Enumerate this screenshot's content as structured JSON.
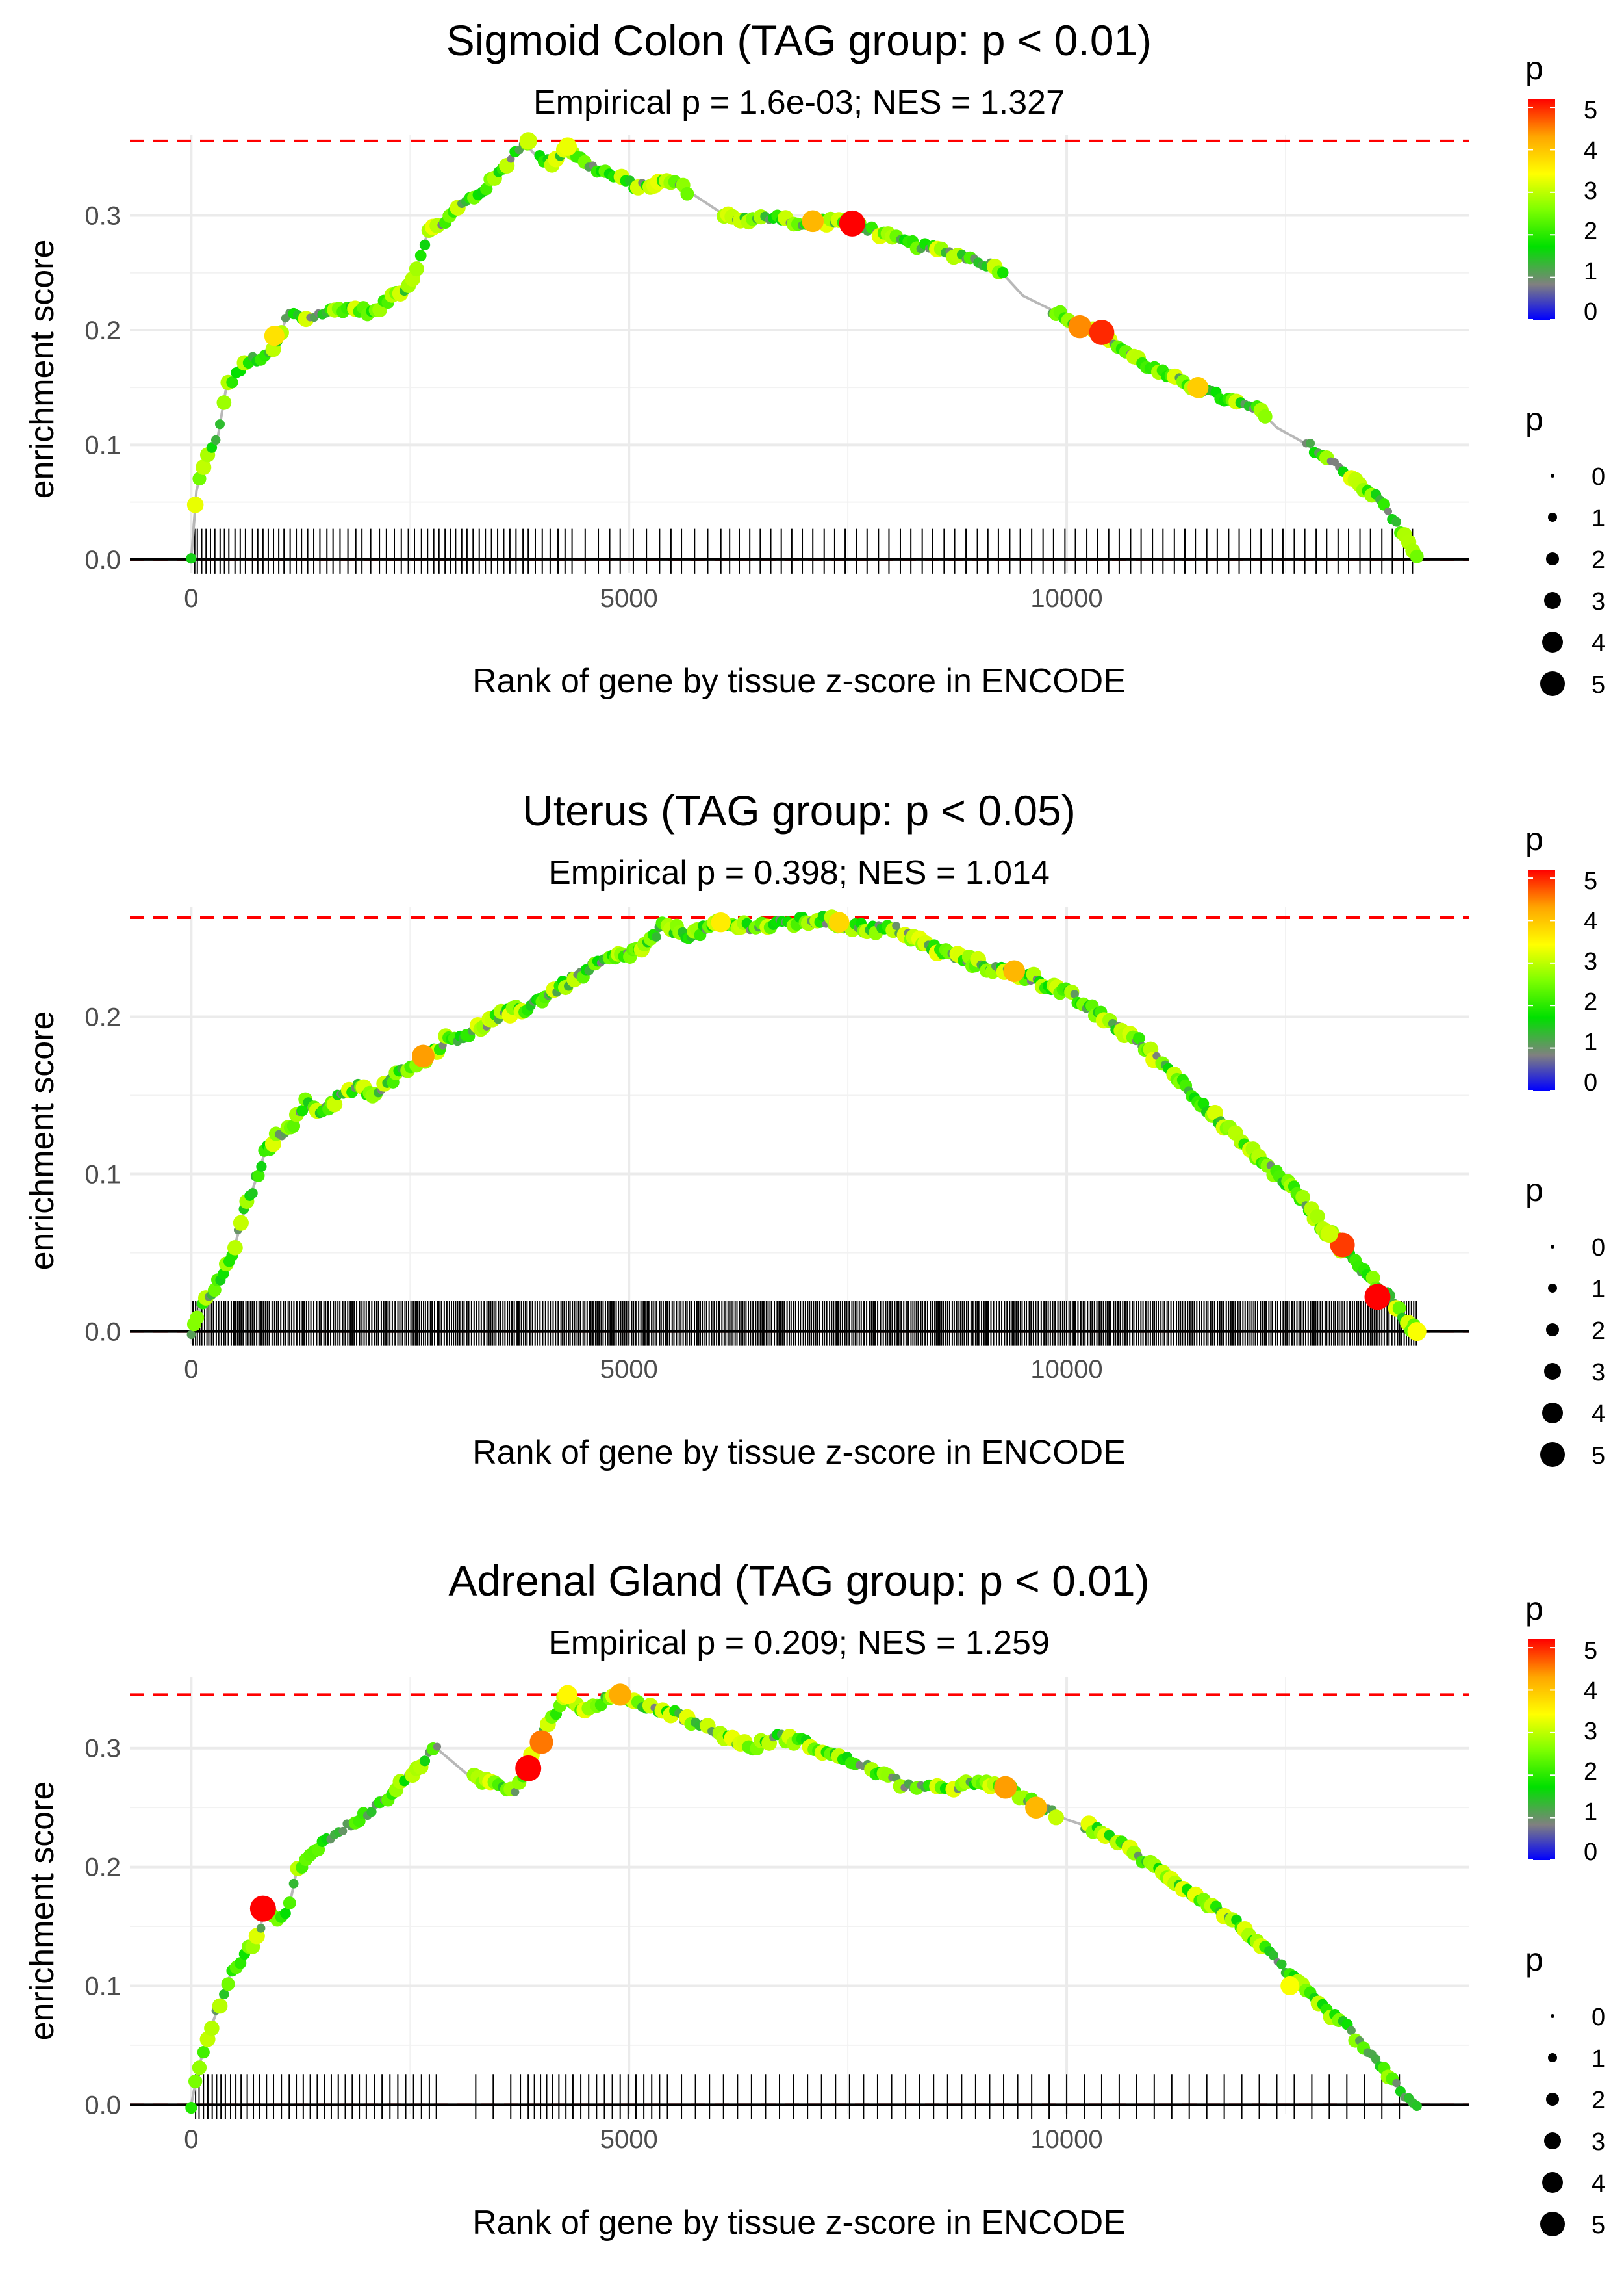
{
  "legend_colors": [
    "#0000ff",
    "#808080",
    "#00e000",
    "#7fff00",
    "#ffff00",
    "#ffa500",
    "#ff0000"
  ],
  "chart_data": [
    {
      "type": "scatter",
      "title": "Sigmoid Colon (TAG group: p < 0.01)",
      "subtitle": "Empirical p = 1.6e-03; NES = 1.327",
      "xlabel": "Rank of gene by tissue z-score in ENCODE",
      "ylabel": "enrichment score",
      "xlim": [
        -700,
        14600
      ],
      "ylim": [
        -0.012,
        0.37
      ],
      "xticks": [
        0,
        5000,
        10000
      ],
      "xtick_labels": [
        "0",
        "5000",
        "10000"
      ],
      "yticks": [
        0.0,
        0.1,
        0.2,
        0.3
      ],
      "ytick_labels": [
        "0.0",
        "0.1",
        "0.2",
        "0.3"
      ],
      "max_es": 0.365,
      "curve": [
        [
          0,
          0
        ],
        [
          60,
          0.06
        ],
        [
          150,
          0.085
        ],
        [
          300,
          0.105
        ],
        [
          400,
          0.15
        ],
        [
          550,
          0.165
        ],
        [
          700,
          0.175
        ],
        [
          850,
          0.175
        ],
        [
          1000,
          0.19
        ],
        [
          1100,
          0.215
        ],
        [
          1300,
          0.21
        ],
        [
          1500,
          0.215
        ],
        [
          1800,
          0.22
        ],
        [
          2100,
          0.215
        ],
        [
          2300,
          0.23
        ],
        [
          2500,
          0.24
        ],
        [
          2600,
          0.26
        ],
        [
          2700,
          0.285
        ],
        [
          2900,
          0.295
        ],
        [
          3100,
          0.31
        ],
        [
          3300,
          0.32
        ],
        [
          3500,
          0.335
        ],
        [
          3700,
          0.355
        ],
        [
          3800,
          0.365
        ],
        [
          3900,
          0.355
        ],
        [
          4100,
          0.345
        ],
        [
          4300,
          0.36
        ],
        [
          4500,
          0.345
        ],
        [
          4800,
          0.335
        ],
        [
          5100,
          0.325
        ],
        [
          5500,
          0.33
        ],
        [
          5700,
          0.32
        ],
        [
          6100,
          0.3
        ],
        [
          6400,
          0.295
        ],
        [
          6700,
          0.3
        ],
        [
          7000,
          0.29
        ],
        [
          7200,
          0.295
        ],
        [
          7400,
          0.295
        ],
        [
          7600,
          0.293
        ],
        [
          8000,
          0.28
        ],
        [
          8400,
          0.272
        ],
        [
          8800,
          0.265
        ],
        [
          9200,
          0.255
        ],
        [
          9500,
          0.23
        ],
        [
          9900,
          0.215
        ],
        [
          10200,
          0.203
        ],
        [
          10400,
          0.198
        ],
        [
          10600,
          0.185
        ],
        [
          10900,
          0.17
        ],
        [
          11200,
          0.158
        ],
        [
          11500,
          0.15
        ],
        [
          11800,
          0.14
        ],
        [
          12200,
          0.13
        ],
        [
          12400,
          0.115
        ],
        [
          12800,
          0.098
        ],
        [
          13200,
          0.075
        ],
        [
          13600,
          0.05
        ],
        [
          13900,
          0.015
        ],
        [
          14000,
          0.005
        ]
      ],
      "highlights": [
        {
          "x": 7550,
          "y": 0.293,
          "p": 5
        },
        {
          "x": 10150,
          "y": 0.203,
          "p": 4.3
        },
        {
          "x": 10400,
          "y": 0.198,
          "p": 4.8
        },
        {
          "x": 7100,
          "y": 0.295,
          "p": 4
        },
        {
          "x": 11500,
          "y": 0.15,
          "p": 3.8
        },
        {
          "x": 950,
          "y": 0.195,
          "p": 3.6
        },
        {
          "x": 4300,
          "y": 0.36,
          "p": 3.2
        },
        {
          "x": 3850,
          "y": 0.365,
          "p": 3
        }
      ],
      "gene_ranks": [
        40,
        70,
        120,
        170,
        220,
        270,
        330,
        380,
        430,
        500,
        560,
        620,
        700,
        760,
        820,
        880,
        940,
        1000,
        1060,
        1130,
        1200,
        1260,
        1330,
        1400,
        1470,
        1550,
        1620,
        1700,
        1790,
        1880,
        1950,
        2050,
        2150,
        2230,
        2320,
        2400,
        2480,
        2550,
        2630,
        2700,
        2770,
        2830,
        2900,
        2960,
        3020,
        3090,
        3150,
        3220,
        3290,
        3360,
        3430,
        3500,
        3570,
        3640,
        3710,
        3790,
        3850,
        3930,
        4010,
        4100,
        4190,
        4270,
        4350,
        4500,
        4650,
        4780,
        4900,
        5050,
        5200,
        5350,
        5480,
        5600,
        5750,
        5900,
        6050,
        6150,
        6260,
        6380,
        6500,
        6620,
        6740,
        6860,
        6980,
        7100,
        7230,
        7350,
        7470,
        7600,
        7720,
        7850,
        7970,
        8100,
        8220,
        8350,
        8470,
        8600,
        8720,
        8850,
        8980,
        9100,
        9220,
        9350,
        9470,
        9600,
        9730,
        9850,
        9980,
        10100,
        10230,
        10350,
        10480,
        10600,
        10730,
        10850,
        10980,
        11100,
        11230,
        11350,
        11470,
        11600,
        11720,
        11850,
        11970,
        12100,
        12220,
        12350,
        12470,
        12600,
        12720,
        12850,
        12970,
        13100,
        13220,
        13350,
        13470,
        13600,
        13720,
        13850,
        13950
      ]
    },
    {
      "type": "scatter",
      "title": "Uterus (TAG group: p < 0.05)",
      "subtitle": "Empirical p = 0.398; NES = 1.014",
      "xlabel": "Rank of gene by tissue z-score in ENCODE",
      "ylabel": "enrichment score",
      "xlim": [
        -700,
        14600
      ],
      "ylim": [
        -0.008,
        0.27
      ],
      "xticks": [
        0,
        5000,
        10000
      ],
      "xtick_labels": [
        "0",
        "5000",
        "10000"
      ],
      "yticks": [
        0.0,
        0.1,
        0.2
      ],
      "ytick_labels": [
        "0.0",
        "0.1",
        "0.2"
      ],
      "max_es": 0.263,
      "curve": [
        [
          0,
          0
        ],
        [
          100,
          0.015
        ],
        [
          250,
          0.025
        ],
        [
          400,
          0.04
        ],
        [
          500,
          0.055
        ],
        [
          600,
          0.075
        ],
        [
          700,
          0.09
        ],
        [
          850,
          0.115
        ],
        [
          1000,
          0.125
        ],
        [
          1200,
          0.135
        ],
        [
          1300,
          0.145
        ],
        [
          1500,
          0.14
        ],
        [
          1700,
          0.15
        ],
        [
          1900,
          0.155
        ],
        [
          2100,
          0.15
        ],
        [
          2300,
          0.16
        ],
        [
          2500,
          0.17
        ],
        [
          2700,
          0.175
        ],
        [
          2900,
          0.185
        ],
        [
          3200,
          0.19
        ],
        [
          3500,
          0.2
        ],
        [
          3800,
          0.205
        ],
        [
          4100,
          0.215
        ],
        [
          4400,
          0.225
        ],
        [
          4700,
          0.235
        ],
        [
          5000,
          0.24
        ],
        [
          5200,
          0.245
        ],
        [
          5400,
          0.258
        ],
        [
          5700,
          0.252
        ],
        [
          6000,
          0.258
        ],
        [
          6300,
          0.258
        ],
        [
          6600,
          0.258
        ],
        [
          6900,
          0.26
        ],
        [
          7200,
          0.262
        ],
        [
          7500,
          0.258
        ],
        [
          7800,
          0.256
        ],
        [
          8100,
          0.255
        ],
        [
          8400,
          0.245
        ],
        [
          8800,
          0.237
        ],
        [
          9200,
          0.23
        ],
        [
          9600,
          0.225
        ],
        [
          10000,
          0.215
        ],
        [
          10400,
          0.2
        ],
        [
          10800,
          0.185
        ],
        [
          11200,
          0.165
        ],
        [
          11500,
          0.148
        ],
        [
          11800,
          0.13
        ],
        [
          12200,
          0.11
        ],
        [
          12600,
          0.09
        ],
        [
          12900,
          0.068
        ],
        [
          13200,
          0.05
        ],
        [
          13500,
          0.032
        ],
        [
          13700,
          0.02
        ],
        [
          13900,
          0.005
        ],
        [
          14000,
          0
        ]
      ],
      "highlights": [
        {
          "x": 13550,
          "y": 0.022,
          "p": 5
        },
        {
          "x": 13150,
          "y": 0.055,
          "p": 4.7
        },
        {
          "x": 2650,
          "y": 0.175,
          "p": 4.2
        },
        {
          "x": 9400,
          "y": 0.229,
          "p": 4
        },
        {
          "x": 7400,
          "y": 0.26,
          "p": 3.7
        },
        {
          "x": 6050,
          "y": 0.26,
          "p": 3.5
        },
        {
          "x": 14000,
          "y": 0,
          "p": 3.3
        },
        {
          "x": 13000,
          "y": 0.062,
          "p": 3
        }
      ],
      "gene_ranks": []
    },
    {
      "type": "scatter",
      "title": "Adrenal Gland (TAG group: p < 0.01)",
      "subtitle": "Empirical p = 0.209; NES = 1.259",
      "xlabel": "Rank of gene by tissue z-score in ENCODE",
      "ylabel": "enrichment score",
      "xlim": [
        -700,
        14600
      ],
      "ylim": [
        -0.008,
        0.36
      ],
      "xticks": [
        0,
        5000,
        10000
      ],
      "xtick_labels": [
        "0",
        "5000",
        "10000"
      ],
      "yticks": [
        0.0,
        0.1,
        0.2,
        0.3
      ],
      "ytick_labels": [
        "0.0",
        "0.1",
        "0.2",
        "0.3"
      ],
      "max_es": 0.345,
      "curve": [
        [
          0,
          0
        ],
        [
          80,
          0.03
        ],
        [
          200,
          0.06
        ],
        [
          350,
          0.09
        ],
        [
          450,
          0.11
        ],
        [
          600,
          0.125
        ],
        [
          750,
          0.14
        ],
        [
          850,
          0.165
        ],
        [
          950,
          0.155
        ],
        [
          1100,
          0.16
        ],
        [
          1200,
          0.195
        ],
        [
          1400,
          0.215
        ],
        [
          1600,
          0.225
        ],
        [
          1800,
          0.235
        ],
        [
          2000,
          0.245
        ],
        [
          2200,
          0.255
        ],
        [
          2400,
          0.27
        ],
        [
          2600,
          0.285
        ],
        [
          2800,
          0.3
        ],
        [
          3200,
          0.275
        ],
        [
          3500,
          0.27
        ],
        [
          3700,
          0.265
        ],
        [
          3800,
          0.28
        ],
        [
          3950,
          0.305
        ],
        [
          4100,
          0.325
        ],
        [
          4300,
          0.345
        ],
        [
          4500,
          0.33
        ],
        [
          4700,
          0.34
        ],
        [
          4900,
          0.345
        ],
        [
          5200,
          0.335
        ],
        [
          5500,
          0.33
        ],
        [
          5800,
          0.32
        ],
        [
          6100,
          0.31
        ],
        [
          6400,
          0.3
        ],
        [
          6700,
          0.31
        ],
        [
          7000,
          0.305
        ],
        [
          7300,
          0.295
        ],
        [
          7700,
          0.285
        ],
        [
          8100,
          0.27
        ],
        [
          8500,
          0.265
        ],
        [
          8900,
          0.27
        ],
        [
          9300,
          0.268
        ],
        [
          9700,
          0.25
        ],
        [
          10000,
          0.24
        ],
        [
          10400,
          0.23
        ],
        [
          10800,
          0.21
        ],
        [
          11200,
          0.19
        ],
        [
          11600,
          0.17
        ],
        [
          12000,
          0.15
        ],
        [
          12400,
          0.12
        ],
        [
          12800,
          0.09
        ],
        [
          13200,
          0.065
        ],
        [
          13600,
          0.03
        ],
        [
          13900,
          0.005
        ],
        [
          14000,
          0
        ]
      ],
      "highlights": [
        {
          "x": 820,
          "y": 0.165,
          "p": 5
        },
        {
          "x": 3850,
          "y": 0.283,
          "p": 5
        },
        {
          "x": 4000,
          "y": 0.305,
          "p": 4.4
        },
        {
          "x": 4900,
          "y": 0.345,
          "p": 4.1
        },
        {
          "x": 9300,
          "y": 0.267,
          "p": 4.2
        },
        {
          "x": 9650,
          "y": 0.25,
          "p": 4
        },
        {
          "x": 12550,
          "y": 0.1,
          "p": 3.3
        },
        {
          "x": 4300,
          "y": 0.345,
          "p": 3.4
        }
      ],
      "gene_ranks": [
        50,
        90,
        140,
        190,
        240,
        290,
        340,
        390,
        450,
        510,
        570,
        640,
        710,
        780,
        860,
        940,
        1030,
        1120,
        1200,
        1280,
        1360,
        1440,
        1520,
        1600,
        1680,
        1760,
        1840,
        1920,
        2000,
        2090,
        2180,
        2270,
        2360,
        2450,
        2540,
        2630,
        2720,
        2800,
        3250,
        3450,
        3650,
        3760,
        3850,
        3920,
        3990,
        4060,
        4130,
        4200,
        4280,
        4360,
        4450,
        4540,
        4630,
        4720,
        4810,
        4900,
        4990,
        5080,
        5170,
        5260,
        5350,
        5440,
        5600,
        5760,
        5920,
        6080,
        6240,
        6400,
        6560,
        6720,
        6880,
        7040,
        7200,
        7360,
        7520,
        7680,
        7840,
        8000,
        8160,
        8320,
        8480,
        8640,
        8800,
        8960,
        9120,
        9280,
        9440,
        9600,
        9800,
        10000,
        10200,
        10400,
        10600,
        10800,
        11000,
        11200,
        11400,
        11600,
        11800,
        12000,
        12200,
        12400,
        12600,
        12800,
        13000,
        13200,
        13400,
        13600,
        13800
      ]
    }
  ],
  "legends": [
    {
      "color_title": "p",
      "color_ticks": [
        "0",
        "1",
        "2",
        "3",
        "4",
        "5"
      ],
      "size_title": "p",
      "size_labels": [
        "0",
        "1",
        "2",
        "3",
        "4",
        "5"
      ]
    },
    {
      "color_title": "p",
      "color_ticks": [
        "0",
        "1",
        "2",
        "3",
        "4",
        "5"
      ],
      "size_title": "p",
      "size_labels": [
        "0",
        "1",
        "2",
        "3",
        "4",
        "5"
      ]
    },
    {
      "color_title": "p",
      "color_ticks": [
        "0",
        "1",
        "2",
        "3",
        "4",
        "5"
      ],
      "size_title": "p",
      "size_labels": [
        "0",
        "1",
        "2",
        "3",
        "4",
        "5"
      ]
    }
  ]
}
